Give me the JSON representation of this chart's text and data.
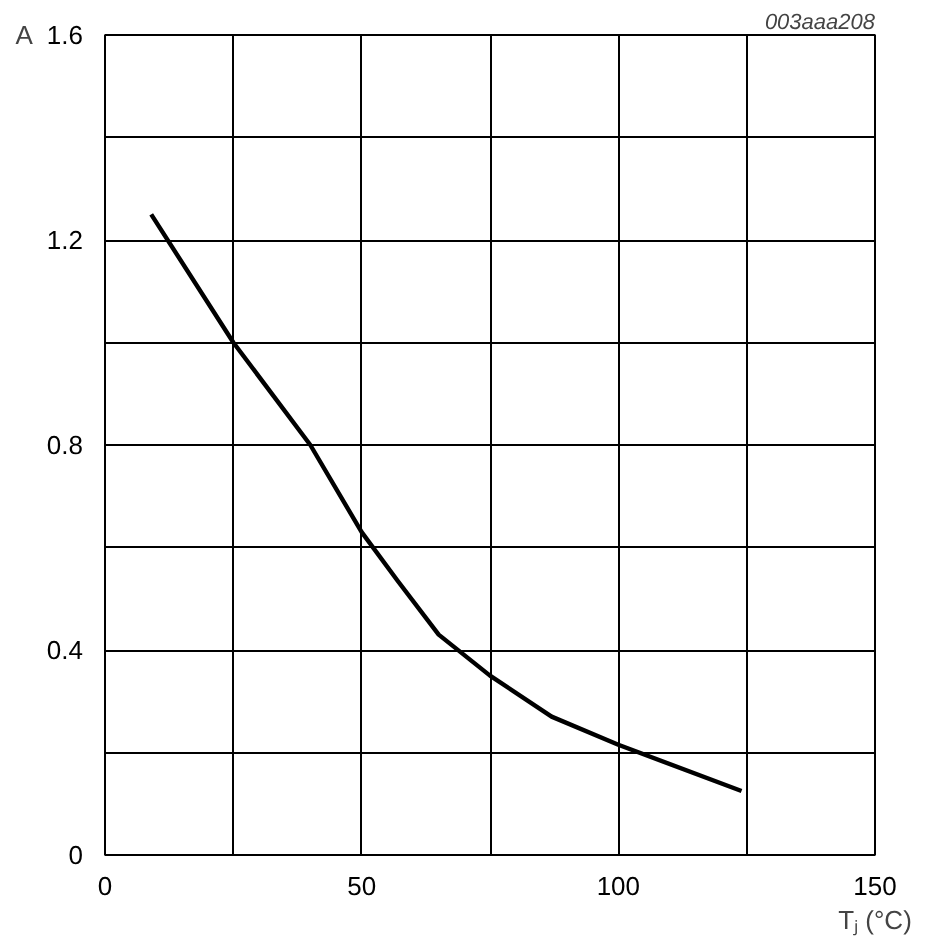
{
  "chart_data": {
    "type": "line",
    "xlabel": "Tⱼ (°C)",
    "ylabel": "A",
    "annotations": [
      "003aaa208"
    ],
    "x": [
      9,
      25,
      40,
      50,
      57,
      65,
      75,
      87,
      100,
      124
    ],
    "series": [
      {
        "color": "#000000",
        "values": [
          1.25,
          1.0,
          0.8,
          0.63,
          0.535,
          0.43,
          0.35,
          0.27,
          0.215,
          0.125
        ]
      }
    ],
    "xlim": [
      0,
      150
    ],
    "ylim": [
      0,
      1.6
    ],
    "xticks": [
      0,
      {
        "value": 25,
        "label": null
      },
      50,
      {
        "value": 75,
        "label": null
      },
      100,
      {
        "value": 125,
        "label": null
      },
      150
    ],
    "yticks": [
      0,
      {
        "value": 0.2,
        "label": null
      },
      0.4,
      {
        "value": 0.6,
        "label": null
      },
      0.8,
      {
        "value": 1.0,
        "label": null
      },
      1.2,
      {
        "value": 1.4,
        "label": null
      },
      1.6
    ],
    "grid": true,
    "marker": "none",
    "line_style": "solid"
  }
}
